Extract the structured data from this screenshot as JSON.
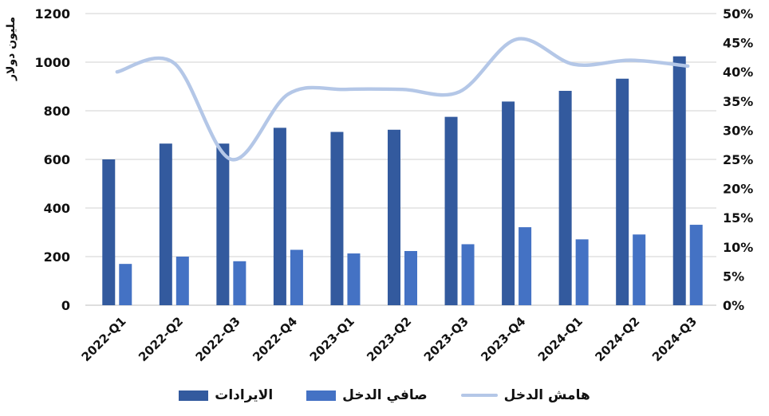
{
  "chart_data": {
    "type": "combo-bar-line",
    "title": "",
    "categories": [
      "2022-Q1",
      "2022-Q2",
      "2022-Q3",
      "2022-Q4",
      "2023-Q1",
      "2023-Q2",
      "2023-Q3",
      "2023-Q4",
      "2024-Q1",
      "2024-Q2",
      "2024-Q3"
    ],
    "series": [
      {
        "name": "الايرادات",
        "type": "bar",
        "axis": "left",
        "color": "#335a9e",
        "values": [
          600,
          665,
          665,
          730,
          713,
          722,
          775,
          838,
          882,
          932,
          1024
        ]
      },
      {
        "name": "صافي الدخل",
        "type": "bar",
        "axis": "left",
        "color": "#4472c4",
        "values": [
          170,
          200,
          181,
          228,
          213,
          223,
          251,
          321,
          271,
          291,
          331
        ]
      },
      {
        "name": "هامش الدخل",
        "type": "line",
        "axis": "right",
        "color": "#b4c7e7",
        "smooth": true,
        "unit": "%",
        "values": [
          40,
          41.5,
          25,
          36.2,
          37,
          37,
          36.6,
          45.6,
          41.3,
          42,
          41
        ]
      }
    ],
    "left_axis": {
      "title": "مليون دولار",
      "min": 0,
      "max": 1200,
      "step": 200,
      "ticks": [
        "0",
        "200",
        "400",
        "600",
        "800",
        "1000",
        "1200"
      ]
    },
    "right_axis": {
      "min": 0,
      "max": 50,
      "step": 5,
      "ticks": [
        "0%",
        "5%",
        "10%",
        "15%",
        "20%",
        "25%",
        "30%",
        "35%",
        "40%",
        "45%",
        "50%"
      ]
    },
    "grid": {
      "horizontal": true,
      "color": "#d9d9d9"
    },
    "axis_line_color": "#d3d3d3",
    "tick_color": "#111111",
    "legend_position": "bottom"
  }
}
